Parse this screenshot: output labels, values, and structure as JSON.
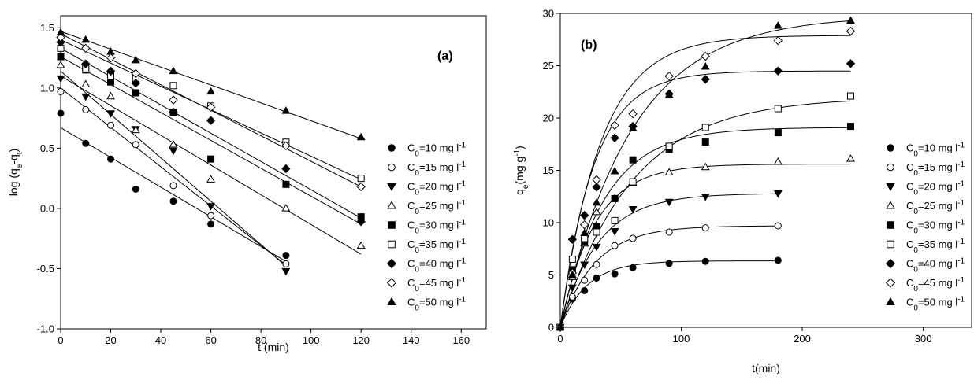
{
  "chart_data": [
    {
      "type": "scatter",
      "panel_label": "(a)",
      "xlabel": "t (min)",
      "ylabel": "log (q<sub>e</sub>-q<sub>t</sub>)",
      "xlim": [
        0,
        170
      ],
      "ylim": [
        -1.0,
        1.6
      ],
      "xticks": [
        0,
        20,
        40,
        60,
        80,
        100,
        120,
        140,
        160
      ],
      "yticks": [
        -1.0,
        -0.5,
        0.0,
        0.5,
        1.0,
        1.5
      ],
      "legend_position": "right",
      "series": [
        {
          "name": "C0=10 mg l-1",
          "legend_base": "C",
          "legend_sub": "0",
          "legend_text": "=10 mg l",
          "legend_sup": "-1",
          "marker": "circle",
          "fill": "filled",
          "x": [
            0,
            10,
            20,
            30,
            45,
            60,
            90
          ],
          "y": [
            0.79,
            0.54,
            0.41,
            0.16,
            0.06,
            -0.13,
            -0.39
          ],
          "fit": [
            [
              0,
              0.67
            ],
            [
              90,
              -0.44
            ]
          ]
        },
        {
          "name": "C0=15 mg l-1",
          "legend_base": "C",
          "legend_sub": "0",
          "legend_text": "=15 mg l",
          "legend_sup": "-1",
          "marker": "circle",
          "fill": "open",
          "x": [
            0,
            10,
            20,
            30,
            45,
            60,
            90
          ],
          "y": [
            0.97,
            0.82,
            0.69,
            0.53,
            0.19,
            -0.06,
            -0.46
          ],
          "fit": [
            [
              0,
              1.0
            ],
            [
              90,
              -0.47
            ]
          ]
        },
        {
          "name": "C0=20 mg l-1",
          "legend_base": "C",
          "legend_sub": "0",
          "legend_text": "=20 mg l",
          "legend_sup": "-1",
          "marker": "triangle-down",
          "fill": "filled",
          "x": [
            0,
            10,
            20,
            30,
            45,
            60,
            90
          ],
          "y": [
            1.08,
            0.93,
            0.79,
            0.66,
            0.48,
            0.02,
            -0.52
          ],
          "fit": [
            [
              0,
              1.14
            ],
            [
              90,
              -0.48
            ]
          ]
        },
        {
          "name": "C0=25 mg l-1",
          "legend_base": "C",
          "legend_sub": "0",
          "legend_text": "=25 mg l",
          "legend_sup": "-1",
          "marker": "triangle-up",
          "fill": "open",
          "x": [
            0,
            10,
            20,
            30,
            45,
            60,
            90,
            120
          ],
          "y": [
            1.19,
            1.03,
            0.93,
            0.65,
            0.53,
            0.24,
            0.0,
            -0.31
          ],
          "fit": [
            [
              0,
              1.1
            ],
            [
              120,
              -0.38
            ]
          ]
        },
        {
          "name": "C0=30 mg l-1",
          "legend_base": "C",
          "legend_sub": "0",
          "legend_text": "=30 mg l",
          "legend_sup": "-1",
          "marker": "square",
          "fill": "filled",
          "x": [
            0,
            10,
            20,
            30,
            45,
            60,
            90,
            120
          ],
          "y": [
            1.26,
            1.15,
            1.05,
            0.96,
            0.8,
            0.41,
            0.2,
            -0.07
          ],
          "fit": [
            [
              0,
              1.26
            ],
            [
              120,
              -0.13
            ]
          ]
        },
        {
          "name": "C0=35 mg l-1",
          "legend_base": "C",
          "legend_sub": "0",
          "legend_text": "=35 mg l",
          "legend_sup": "-1",
          "marker": "square",
          "fill": "open",
          "x": [
            0,
            10,
            20,
            30,
            45,
            60,
            90,
            120
          ],
          "y": [
            1.33,
            1.16,
            1.1,
            1.08,
            1.02,
            0.85,
            0.55,
            0.25
          ],
          "fit": [
            [
              0,
              1.4
            ],
            [
              120,
              0.24
            ]
          ]
        },
        {
          "name": "C0=40 mg l-1",
          "legend_base": "C",
          "legend_sub": "0",
          "legend_text": "=40 mg l",
          "legend_sup": "-1",
          "marker": "diamond",
          "fill": "filled",
          "x": [
            0,
            10,
            20,
            30,
            45,
            60,
            90,
            120
          ],
          "y": [
            1.38,
            1.2,
            1.14,
            1.04,
            0.8,
            0.73,
            0.33,
            -0.11
          ],
          "fit": [
            [
              0,
              1.33
            ],
            [
              120,
              -0.08
            ]
          ]
        },
        {
          "name": "C0=45 mg l-1",
          "legend_base": "C",
          "legend_sub": "0",
          "legend_text": "=45 mg l",
          "legend_sup": "-1",
          "marker": "diamond",
          "fill": "open",
          "x": [
            0,
            10,
            20,
            30,
            45,
            60,
            90,
            120
          ],
          "y": [
            1.42,
            1.33,
            1.25,
            1.12,
            0.9,
            0.84,
            0.52,
            0.18
          ],
          "fit": [
            [
              0,
              1.45
            ],
            [
              120,
              0.18
            ]
          ]
        },
        {
          "name": "C0=50 mg l-1",
          "legend_base": "C",
          "legend_sub": "0",
          "legend_text": "=50 mg l",
          "legend_sup": "-1",
          "marker": "triangle-up",
          "fill": "filled",
          "x": [
            0,
            10,
            20,
            30,
            45,
            60,
            90,
            120
          ],
          "y": [
            1.46,
            1.4,
            1.3,
            1.23,
            1.14,
            0.97,
            0.81,
            0.59
          ],
          "fit": [
            [
              0,
              1.47
            ],
            [
              120,
              0.58
            ]
          ]
        }
      ]
    },
    {
      "type": "scatter",
      "panel_label": "(b)",
      "xlabel": "t(min)",
      "ylabel": "q<sub>e</sub>(mg g<sup>-1</sup>)",
      "xlim": [
        0,
        340
      ],
      "ylim": [
        0,
        30
      ],
      "xticks": [
        0,
        100,
        200,
        300
      ],
      "yticks": [
        0,
        5,
        10,
        15,
        20,
        25,
        30
      ],
      "legend_position": "right",
      "series": [
        {
          "name": "C0=10 mg l-1",
          "legend_base": "C",
          "legend_sub": "0",
          "legend_text": "=10 mg l",
          "legend_sup": "-1",
          "marker": "circle",
          "fill": "filled",
          "x": [
            0,
            10,
            20,
            30,
            45,
            60,
            90,
            120,
            180
          ],
          "y": [
            0,
            2.7,
            3.5,
            4.7,
            5.1,
            5.7,
            6.1,
            6.3,
            6.4
          ],
          "qmax": 6.35,
          "k": 0.045,
          "tmax": 180
        },
        {
          "name": "C0=15 mg l-1",
          "legend_base": "C",
          "legend_sub": "0",
          "legend_text": "=15 mg l",
          "legend_sup": "-1",
          "marker": "circle",
          "fill": "open",
          "x": [
            0,
            10,
            20,
            30,
            45,
            60,
            90,
            120,
            180
          ],
          "y": [
            0,
            2.9,
            4.5,
            6.0,
            7.8,
            8.5,
            9.1,
            9.5,
            9.7
          ],
          "qmax": 9.7,
          "k": 0.035,
          "tmax": 180
        },
        {
          "name": "C0=20 mg l-1",
          "legend_base": "C",
          "legend_sub": "0",
          "legend_text": "=20 mg l",
          "legend_sup": "-1",
          "marker": "triangle-down",
          "fill": "filled",
          "x": [
            0,
            10,
            20,
            30,
            45,
            60,
            90,
            120,
            180
          ],
          "y": [
            0,
            3.8,
            6.0,
            7.7,
            9.2,
            11.3,
            12.0,
            12.5,
            12.8
          ],
          "qmax": 12.8,
          "k": 0.032,
          "tmax": 180
        },
        {
          "name": "C0=25 mg l-1",
          "legend_base": "C",
          "legend_sub": "0",
          "legend_text": "=25 mg l",
          "legend_sup": "-1",
          "marker": "triangle-up",
          "fill": "open",
          "x": [
            0,
            10,
            20,
            30,
            45,
            60,
            90,
            120,
            180,
            240
          ],
          "y": [
            0,
            4.8,
            8.0,
            11.0,
            12.3,
            13.8,
            14.8,
            15.3,
            15.8,
            16.1
          ],
          "qmax": 15.6,
          "k": 0.035,
          "tmax": 240
        },
        {
          "name": "C0=30 mg l-1",
          "legend_base": "C",
          "legend_sub": "0",
          "legend_text": "=30 mg l",
          "legend_sup": "-1",
          "marker": "square",
          "fill": "filled",
          "x": [
            0,
            10,
            20,
            30,
            45,
            60,
            90,
            120,
            180,
            240
          ],
          "y": [
            0,
            5.5,
            8.2,
            9.6,
            12.3,
            16.0,
            17.0,
            17.7,
            18.6,
            19.2
          ],
          "qmax": 19.1,
          "k": 0.028,
          "tmax": 240
        },
        {
          "name": "C0=35 mg l-1",
          "legend_base": "C",
          "legend_sub": "0",
          "legend_text": "=35 mg l",
          "legend_sup": "-1",
          "marker": "square",
          "fill": "open",
          "x": [
            0,
            10,
            20,
            30,
            45,
            60,
            90,
            120,
            180,
            240
          ],
          "y": [
            0,
            6.5,
            8.5,
            9.1,
            10.2,
            13.9,
            17.3,
            19.1,
            20.9,
            22.1
          ],
          "qmax": 22.0,
          "k": 0.017,
          "tmax": 240
        },
        {
          "name": "C0=40 mg l-1",
          "legend_base": "C",
          "legend_sub": "0",
          "legend_text": "=40 mg l",
          "legend_sup": "-1",
          "marker": "diamond",
          "fill": "filled",
          "x": [
            0,
            10,
            20,
            30,
            45,
            60,
            90,
            120,
            180,
            240
          ],
          "y": [
            0,
            8.4,
            10.7,
            13.4,
            18.1,
            19.2,
            22.3,
            23.7,
            24.5,
            25.2
          ],
          "qmax": 24.5,
          "k": 0.036,
          "tmax": 240
        },
        {
          "name": "C0=45 mg l-1",
          "legend_base": "C",
          "legend_sub": "0",
          "legend_text": "=45 mg l",
          "legend_sup": "-1",
          "marker": "diamond",
          "fill": "open",
          "x": [
            0,
            10,
            20,
            30,
            45,
            60,
            90,
            120,
            180,
            240
          ],
          "y": [
            0,
            5.2,
            9.8,
            14.1,
            19.3,
            20.4,
            24.0,
            25.9,
            27.4,
            28.3
          ],
          "qmax": 27.9,
          "k": 0.03,
          "tmax": 240
        },
        {
          "name": "C0=50 mg l-1",
          "legend_base": "C",
          "legend_sub": "0",
          "legend_text": "=50 mg l",
          "legend_sup": "-1",
          "marker": "triangle-up",
          "fill": "filled",
          "x": [
            0,
            10,
            20,
            30,
            45,
            60,
            90,
            120,
            180,
            240
          ],
          "y": [
            0,
            5.0,
            9.0,
            11.9,
            14.9,
            19.0,
            22.2,
            24.9,
            28.8,
            29.3
          ],
          "qmax": 29.8,
          "k": 0.017,
          "tmax": 240
        }
      ]
    }
  ]
}
